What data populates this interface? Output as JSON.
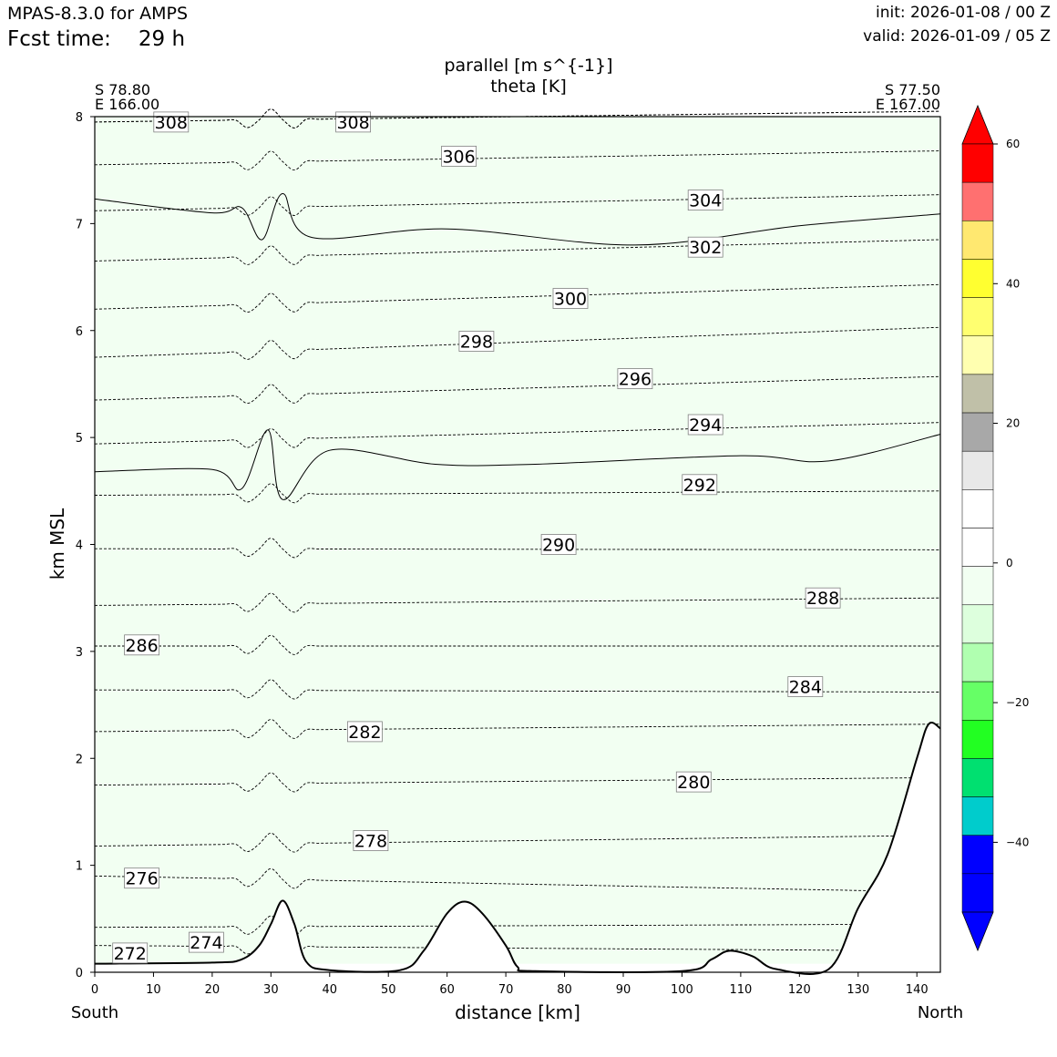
{
  "header": {
    "app_title": "MPAS-8.3.0 for AMPS",
    "fcst_label": "Fcst time:",
    "fcst_value": "29 h",
    "init": "init: 2026-01-08 / 00 Z",
    "valid": "valid: 2026-01-09 / 05 Z"
  },
  "chart_data": {
    "type": "cross-section",
    "title_lines": [
      "parallel [m s^{-1}]",
      "theta [K]"
    ],
    "xlabel": "distance [km]",
    "ylabel": "km MSL",
    "xlim": [
      0,
      144
    ],
    "ylim": [
      0,
      8
    ],
    "x_ticks": [
      0,
      10,
      20,
      30,
      40,
      50,
      60,
      70,
      80,
      90,
      100,
      110,
      120,
      130,
      140
    ],
    "y_ticks": [
      0,
      1,
      2,
      3,
      4,
      5,
      6,
      7,
      8
    ],
    "start_point": {
      "lat": "S 78.80",
      "lon": "E 166.00",
      "end_label": "South"
    },
    "end_point": {
      "lat": "S 77.50",
      "lon": "E 167.00",
      "end_label": "North"
    },
    "shading": [
      {
        "band": "-20 to -15",
        "color": "#b0ffb0",
        "base_km": [
          [
            0,
            7.23
          ],
          [
            20,
            7.1
          ],
          [
            25,
            7.15
          ],
          [
            28.5,
            6.85
          ],
          [
            32,
            7.28
          ],
          [
            37,
            6.87
          ],
          [
            60,
            6.95
          ],
          [
            92,
            6.8
          ],
          [
            120,
            6.98
          ],
          [
            144,
            7.09
          ]
        ]
      },
      {
        "band": "-15 to -10",
        "color": "#ddffdd",
        "base_km": [
          [
            0,
            4.68
          ],
          [
            20,
            4.7
          ],
          [
            25,
            4.52
          ],
          [
            29.5,
            5.07
          ],
          [
            32,
            4.42
          ],
          [
            40,
            4.88
          ],
          [
            58,
            4.75
          ],
          [
            75,
            4.75
          ],
          [
            110,
            4.83
          ],
          [
            125,
            4.78
          ],
          [
            144,
            5.03
          ]
        ]
      },
      {
        "band": "-10 to -5",
        "color": "#f2fff2",
        "base_km": [
          [
            0,
            0.08
          ],
          [
            144,
            0.08
          ]
        ]
      }
    ],
    "theta_contours": [
      {
        "level": 272,
        "label_km": [
          6,
          0.18
        ],
        "y0_km": 0.25,
        "y1_km": 0.2
      },
      {
        "level": 274,
        "label_km": [
          19,
          0.28
        ],
        "y0_km": 0.42,
        "y1_km": 0.45
      },
      {
        "level": 276,
        "label_km": [
          8,
          0.88
        ],
        "y0_km": 0.9,
        "y1_km": 0.75
      },
      {
        "level": 278,
        "label_km": [
          47,
          1.23
        ],
        "y0_km": 1.18,
        "y1_km": 1.28
      },
      {
        "level": 280,
        "label_km": [
          102,
          1.78
        ],
        "y0_km": 1.75,
        "y1_km": 1.82
      },
      {
        "level": 282,
        "label_km": [
          46,
          2.25
        ],
        "y0_km": 2.25,
        "y1_km": 2.32
      },
      {
        "level": 284,
        "label_km": [
          121,
          2.67
        ],
        "y0_km": 2.64,
        "y1_km": 2.62
      },
      {
        "level": 286,
        "label_km": [
          8,
          3.06
        ],
        "y0_km": 3.05,
        "y1_km": 3.05
      },
      {
        "level": 288,
        "label_km": [
          124,
          3.5
        ],
        "y0_km": 3.43,
        "y1_km": 3.5
      },
      {
        "level": 290,
        "label_km": [
          79,
          4.0
        ],
        "y0_km": 3.96,
        "y1_km": 3.95
      },
      {
        "level": 292,
        "label_km": [
          103,
          4.56
        ],
        "y0_km": 4.46,
        "y1_km": 4.5
      },
      {
        "level": 294,
        "label_km": [
          104,
          5.12
        ],
        "y0_km": 4.94,
        "y1_km": 5.14
      },
      {
        "level": 296,
        "label_km": [
          92,
          5.55
        ],
        "y0_km": 5.35,
        "y1_km": 5.57
      },
      {
        "level": 298,
        "label_km": [
          65,
          5.9
        ],
        "y0_km": 5.75,
        "y1_km": 6.03
      },
      {
        "level": 300,
        "label_km": [
          81,
          6.3
        ],
        "y0_km": 6.2,
        "y1_km": 6.43
      },
      {
        "level": 302,
        "label_km": [
          104,
          6.78
        ],
        "y0_km": 6.65,
        "y1_km": 6.85
      },
      {
        "level": 304,
        "label_km": [
          104,
          7.22
        ],
        "y0_km": 7.12,
        "y1_km": 7.27
      },
      {
        "level": 306,
        "label_km": [
          62,
          7.63
        ],
        "y0_km": 7.55,
        "y1_km": 7.68
      },
      {
        "level": 308,
        "label_km": [
          13,
          7.95
        ],
        "y0_km": 7.95,
        "y1_km": 8.05
      },
      {
        "level": 308,
        "label_km": [
          44,
          7.95
        ],
        "y0_km": 7.95,
        "y1_km": 8.05
      }
    ],
    "terrain_km": [
      [
        0,
        0.08
      ],
      [
        20,
        0.09
      ],
      [
        25,
        0.12
      ],
      [
        28,
        0.25
      ],
      [
        30,
        0.45
      ],
      [
        32,
        0.67
      ],
      [
        34,
        0.45
      ],
      [
        36,
        0.1
      ],
      [
        40,
        0.02
      ],
      [
        52,
        0.02
      ],
      [
        56,
        0.2
      ],
      [
        60,
        0.55
      ],
      [
        63,
        0.66
      ],
      [
        66,
        0.55
      ],
      [
        70,
        0.25
      ],
      [
        72,
        0.05
      ],
      [
        75,
        0.01
      ],
      [
        100,
        0.01
      ],
      [
        105,
        0.12
      ],
      [
        108,
        0.2
      ],
      [
        112,
        0.15
      ],
      [
        116,
        0.03
      ],
      [
        125,
        0.03
      ],
      [
        130,
        0.6
      ],
      [
        135,
        1.1
      ],
      [
        140,
        2.0
      ],
      [
        142,
        2.32
      ],
      [
        144,
        2.28
      ]
    ],
    "colorbar": {
      "ticks": [
        60,
        40,
        20,
        0,
        -20,
        -40
      ],
      "tick_labels": [
        "60",
        "40",
        "20",
        "0",
        "−20",
        "−40"
      ],
      "colors_top_to_bottom": [
        "#ff0000",
        "#ff0000",
        "#ff7070",
        "#ffe870",
        "#ffff30",
        "#ffff70",
        "#ffffb0",
        "#c0c0a8",
        "#a8a8a8",
        "#e8e8e8",
        "#ffffff",
        "#ffffff",
        "#f2fff2",
        "#ddffdd",
        "#b0ffb0",
        "#66ff66",
        "#22ff22",
        "#00e070",
        "#00cccc",
        "#0000ff",
        "#0000ff",
        "#0000ff"
      ]
    }
  }
}
